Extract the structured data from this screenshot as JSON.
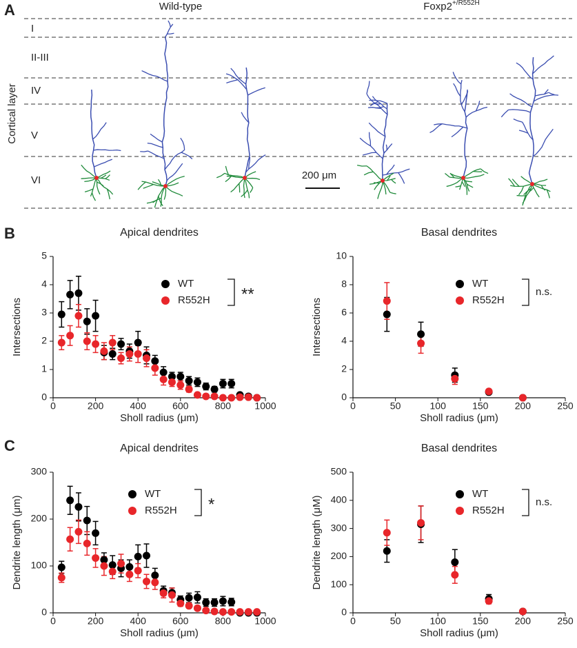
{
  "panel_labels": [
    "A",
    "B",
    "C"
  ],
  "panel_a": {
    "groups": [
      "Wild-type",
      [
        "Foxp2",
        "+/R552H"
      ]
    ],
    "layers": [
      "I",
      "II-III",
      "IV",
      "V",
      "VI"
    ],
    "axis_label": "Cortical layer",
    "scale_bar": "200 μm"
  },
  "chart_data": [
    {
      "type": "scatter",
      "title": "Apical dendrites",
      "xlabel": "Sholl radius (μm)",
      "ylabel": "Intersections",
      "x": [
        40,
        80,
        120,
        160,
        200,
        240,
        280,
        320,
        360,
        400,
        440,
        480,
        520,
        560,
        600,
        640,
        680,
        720,
        760,
        800,
        840,
        880,
        920,
        960
      ],
      "xlim": [
        0,
        1000
      ],
      "xticks": [
        0,
        200,
        400,
        600,
        800,
        1000
      ],
      "ylim": [
        0,
        5
      ],
      "yticks": [
        0,
        1,
        2,
        3,
        4,
        5
      ],
      "annotation": "**",
      "legend": "upper right",
      "series": [
        {
          "name": "WT",
          "color": "#000000",
          "values": [
            2.95,
            3.65,
            3.7,
            2.7,
            2.9,
            1.6,
            1.55,
            1.9,
            1.65,
            1.95,
            1.5,
            1.3,
            0.9,
            0.75,
            0.75,
            0.6,
            0.55,
            0.4,
            0.3,
            0.5,
            0.5,
            0.1,
            0.05,
            0
          ],
          "errors": [
            0.45,
            0.5,
            0.6,
            0.45,
            0.55,
            0.25,
            0.2,
            0.2,
            0.25,
            0.4,
            0.3,
            0.2,
            0.2,
            0.15,
            0.15,
            0.15,
            0.15,
            0.12,
            0.1,
            0.15,
            0.15,
            0.05,
            0.03,
            0
          ]
        },
        {
          "name": "R552H",
          "color": "#e8262a",
          "values": [
            1.95,
            2.2,
            2.9,
            2.0,
            1.9,
            1.65,
            1.95,
            1.4,
            1.55,
            1.55,
            1.4,
            1.05,
            0.65,
            0.55,
            0.45,
            0.3,
            0.1,
            0.05,
            0.05,
            0,
            0,
            0.02,
            0.02,
            0
          ],
          "errors": [
            0.25,
            0.35,
            0.4,
            0.3,
            0.3,
            0.3,
            0.25,
            0.2,
            0.25,
            0.3,
            0.3,
            0.25,
            0.2,
            0.15,
            0.15,
            0.1,
            0.05,
            0.03,
            0.03,
            0,
            0,
            0.02,
            0.02,
            0
          ]
        }
      ]
    },
    {
      "type": "scatter",
      "title": "Basal dendrites",
      "xlabel": "Sholl radius (μm)",
      "ylabel": "Intersections",
      "x": [
        40,
        80,
        120,
        160,
        200
      ],
      "xlim": [
        0,
        250
      ],
      "xticks": [
        0,
        50,
        100,
        150,
        200,
        250
      ],
      "ylim": [
        0,
        10
      ],
      "yticks": [
        0,
        2,
        4,
        6,
        8,
        10
      ],
      "annotation": "n.s.",
      "legend": "upper right",
      "series": [
        {
          "name": "WT",
          "color": "#000000",
          "values": [
            5.9,
            4.5,
            1.6,
            0.4,
            0
          ],
          "errors": [
            1.2,
            0.85,
            0.5,
            0.1,
            0
          ]
        },
        {
          "name": "R552H",
          "color": "#e8262a",
          "values": [
            6.85,
            3.85,
            1.35,
            0.45,
            0
          ],
          "errors": [
            1.3,
            0.7,
            0.4,
            0.1,
            0
          ]
        }
      ]
    },
    {
      "type": "scatter",
      "title": "Apical dendrites",
      "xlabel": "Sholl radius (μm)",
      "ylabel": "Dendrite length (μm)",
      "x": [
        40,
        80,
        120,
        160,
        200,
        240,
        280,
        320,
        360,
        400,
        440,
        480,
        520,
        560,
        600,
        640,
        680,
        720,
        760,
        800,
        840,
        880,
        920,
        960
      ],
      "xlim": [
        0,
        1000
      ],
      "xticks": [
        0,
        200,
        400,
        600,
        800,
        1000
      ],
      "ylim": [
        0,
        300
      ],
      "yticks": [
        0,
        100,
        200,
        300
      ],
      "annotation": "*",
      "legend": "upper right",
      "series": [
        {
          "name": "WT",
          "color": "#000000",
          "values": [
            97,
            240,
            226,
            197,
            170,
            113,
            102,
            95,
            98,
            120,
            122,
            80,
            47,
            43,
            28,
            32,
            33,
            22,
            22,
            25,
            23,
            0,
            0,
            0
          ],
          "errors": [
            13,
            30,
            30,
            30,
            25,
            15,
            20,
            18,
            15,
            25,
            25,
            15,
            10,
            10,
            8,
            10,
            12,
            8,
            8,
            10,
            8,
            0,
            0,
            0
          ]
        },
        {
          "name": "R552H",
          "color": "#e8262a",
          "values": [
            75,
            157,
            173,
            148,
            117,
            100,
            88,
            105,
            82,
            90,
            67,
            65,
            42,
            38,
            20,
            15,
            10,
            5,
            3,
            2,
            2,
            2,
            2,
            2
          ],
          "errors": [
            10,
            25,
            25,
            25,
            20,
            20,
            15,
            20,
            15,
            15,
            15,
            15,
            10,
            15,
            6,
            5,
            4,
            3,
            2,
            1,
            1,
            1,
            1,
            1
          ]
        }
      ]
    },
    {
      "type": "scatter",
      "title": "Basal dendrites",
      "xlabel": "Sholl radius (μm)",
      "ylabel": "Dendrite length (μM)",
      "x": [
        40,
        80,
        120,
        160,
        200
      ],
      "xlim": [
        0,
        250
      ],
      "xticks": [
        0,
        50,
        100,
        150,
        200,
        250
      ],
      "ylim": [
        0,
        500
      ],
      "yticks": [
        0,
        100,
        200,
        300,
        400,
        500
      ],
      "annotation": "n.s.",
      "legend": "upper right",
      "series": [
        {
          "name": "WT",
          "color": "#000000",
          "values": [
            220,
            315,
            180,
            50,
            5
          ],
          "errors": [
            40,
            65,
            45,
            15,
            2
          ]
        },
        {
          "name": "R552H",
          "color": "#e8262a",
          "values": [
            285,
            320,
            135,
            42,
            5
          ],
          "errors": [
            45,
            60,
            30,
            10,
            2
          ]
        }
      ]
    }
  ]
}
